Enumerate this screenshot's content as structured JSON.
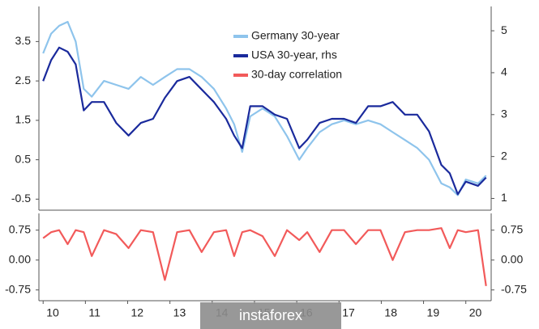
{
  "chart_data": [
    {
      "type": "line",
      "x": [
        10.0,
        10.19,
        10.38,
        10.58,
        10.77,
        10.96,
        11.15,
        11.44,
        11.73,
        12.02,
        12.31,
        12.6,
        12.88,
        13.17,
        13.46,
        13.75,
        14.04,
        14.33,
        14.52,
        14.71,
        14.9,
        15.19,
        15.48,
        15.77,
        16.06,
        16.25,
        16.54,
        16.83,
        17.12,
        17.4,
        17.69,
        17.98,
        18.27,
        18.56,
        18.85,
        19.13,
        19.42,
        19.62,
        19.81,
        20.0,
        20.29,
        20.48
      ],
      "series": [
        {
          "name": "Germany 30-year",
          "color": "#8ec4ec",
          "axis": "y",
          "values": [
            3.2,
            3.7,
            3.9,
            4.0,
            3.5,
            2.3,
            2.1,
            2.5,
            2.4,
            2.3,
            2.6,
            2.4,
            2.6,
            2.8,
            2.8,
            2.6,
            2.3,
            1.8,
            1.4,
            0.7,
            1.6,
            1.8,
            1.6,
            1.1,
            0.5,
            0.8,
            1.2,
            1.4,
            1.5,
            1.4,
            1.5,
            1.4,
            1.2,
            1.0,
            0.8,
            0.5,
            -0.1,
            -0.2,
            -0.4,
            0.0,
            -0.1,
            0.1
          ]
        },
        {
          "name": "USA 30-year, rhs",
          "color": "#1a2a9c",
          "axis": "y2",
          "values": [
            3.8,
            4.3,
            4.6,
            4.5,
            4.2,
            3.1,
            3.3,
            3.3,
            2.8,
            2.5,
            2.8,
            2.9,
            3.4,
            3.8,
            3.9,
            3.6,
            3.3,
            2.9,
            2.5,
            2.2,
            3.2,
            3.2,
            3.0,
            2.9,
            2.2,
            2.4,
            2.8,
            2.9,
            2.9,
            2.8,
            3.2,
            3.2,
            3.3,
            3.0,
            3.0,
            2.6,
            1.8,
            1.6,
            1.1,
            1.4,
            1.3,
            1.5
          ]
        }
      ],
      "xlim": [
        9.9,
        20.6
      ],
      "ylim": [
        -0.78,
        4.39
      ],
      "yticks": [
        -0.5,
        0.5,
        1.5,
        2.5,
        3.5
      ],
      "y2lim": [
        0.72,
        5.58
      ],
      "y2ticks": [
        1,
        2,
        3,
        4,
        5
      ]
    },
    {
      "type": "line",
      "x": [
        10.0,
        10.19,
        10.38,
        10.58,
        10.77,
        10.96,
        11.15,
        11.44,
        11.73,
        12.02,
        12.31,
        12.6,
        12.88,
        13.17,
        13.46,
        13.75,
        14.04,
        14.33,
        14.52,
        14.71,
        14.9,
        15.19,
        15.48,
        15.77,
        16.06,
        16.25,
        16.54,
        16.83,
        17.12,
        17.4,
        17.69,
        17.98,
        18.27,
        18.56,
        18.85,
        19.13,
        19.42,
        19.62,
        19.81,
        20.0,
        20.29,
        20.48
      ],
      "series": [
        {
          "name": "30-day correlation",
          "color": "#f25a5a",
          "axis": "y",
          "values": [
            0.55,
            0.7,
            0.75,
            0.4,
            0.75,
            0.7,
            0.1,
            0.75,
            0.65,
            0.3,
            0.75,
            0.7,
            -0.5,
            0.7,
            0.75,
            0.2,
            0.7,
            0.75,
            0.1,
            0.7,
            0.75,
            0.6,
            0.1,
            0.75,
            0.5,
            0.7,
            0.2,
            0.75,
            0.75,
            0.4,
            0.75,
            0.75,
            0.0,
            0.7,
            0.75,
            0.75,
            0.8,
            0.3,
            0.75,
            0.7,
            0.75,
            -0.65
          ]
        }
      ],
      "xlim": [
        9.9,
        20.6
      ],
      "xticks": [
        10,
        11,
        12,
        13,
        14,
        15,
        16,
        17,
        18,
        19,
        20
      ],
      "ylim": [
        -1.02,
        1.17
      ],
      "yticks": [
        -0.75,
        {
          "value": 0,
          "label": "0.00"
        },
        0.75
      ],
      "y2lim": [
        -1.02,
        1.17
      ],
      "y2ticks": [
        -0.75,
        {
          "value": 0,
          "label": "0.00"
        },
        0.75
      ]
    }
  ],
  "watermark": "instaforex"
}
